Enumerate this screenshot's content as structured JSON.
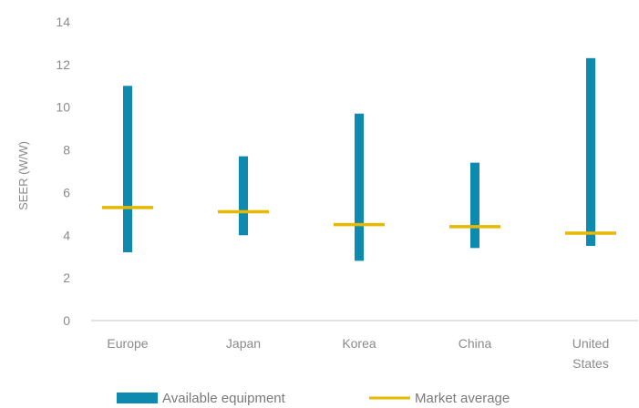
{
  "chart_data": {
    "type": "range-bar",
    "title": "",
    "xlabel": "",
    "ylabel": "SEER (W/W)",
    "ylim": [
      0,
      14
    ],
    "yticks": [
      0,
      2,
      4,
      6,
      8,
      10,
      12,
      14
    ],
    "grid": false,
    "legend_position": "bottom",
    "categories": [
      {
        "lines": [
          "Europe"
        ]
      },
      {
        "lines": [
          "Japan"
        ]
      },
      {
        "lines": [
          "Korea"
        ]
      },
      {
        "lines": [
          "China"
        ]
      },
      {
        "lines": [
          "United",
          "States"
        ]
      }
    ],
    "series": [
      {
        "name": "Available equipment",
        "kind": "range",
        "color": "#0e8ab0",
        "min": [
          3.2,
          4.0,
          2.8,
          3.4,
          3.5
        ],
        "max": [
          11.0,
          7.7,
          9.7,
          7.4,
          12.3
        ]
      },
      {
        "name": "Market average",
        "kind": "marker",
        "color": "#e6b800",
        "values": [
          5.3,
          5.1,
          4.5,
          4.4,
          4.1
        ]
      }
    ]
  }
}
